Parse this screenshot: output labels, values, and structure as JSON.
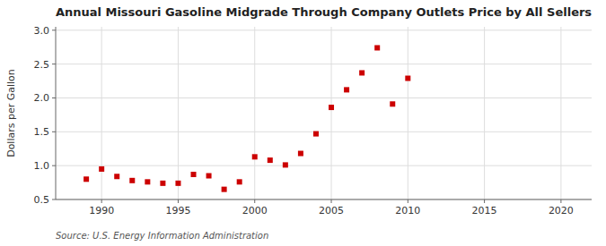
{
  "chart_data": {
    "type": "scatter",
    "title": "Annual Missouri Gasoline Midgrade Through Company Outlets Price by All Sellers",
    "ylabel": "Dollars per Gallon",
    "source": "Source: U.S. Energy Information Administration",
    "x": [
      1989,
      1990,
      1991,
      1992,
      1993,
      1994,
      1995,
      1996,
      1997,
      1998,
      1999,
      2000,
      2001,
      2002,
      2003,
      2004,
      2005,
      2006,
      2007,
      2008,
      2009,
      2010
    ],
    "values": [
      0.8,
      0.95,
      0.84,
      0.78,
      0.76,
      0.74,
      0.74,
      0.87,
      0.85,
      0.65,
      0.76,
      1.13,
      1.08,
      1.01,
      1.18,
      1.47,
      1.86,
      2.12,
      2.37,
      2.74,
      1.91,
      2.29
    ],
    "color": "#cc0000",
    "marker": "square",
    "xlim": [
      1987,
      2022
    ],
    "ylim": [
      0.5,
      3.05
    ],
    "xticks": [
      1990,
      1995,
      2000,
      2005,
      2010,
      2015,
      2020
    ],
    "yticks": [
      0.5,
      {
        "value": 1.0,
        "label": "1.0"
      },
      1.5,
      {
        "value": 2.0,
        "label": "2.0"
      },
      2.5,
      {
        "value": 3.0,
        "label": "3.0"
      }
    ],
    "grid": true
  }
}
